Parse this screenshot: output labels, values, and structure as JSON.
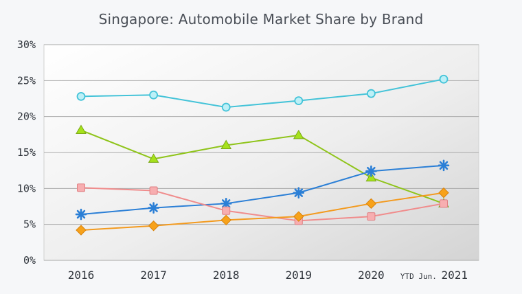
{
  "chart_data": {
    "type": "line",
    "title": "Singapore: Automobile Market Share by Brand",
    "xlabel": "",
    "ylabel": "",
    "categories": [
      "2016",
      "2017",
      "2018",
      "2019",
      "2020",
      "YTD Jun. 2021"
    ],
    "category_labels": [
      {
        "prefix": "",
        "main": "2016"
      },
      {
        "prefix": "",
        "main": "2017"
      },
      {
        "prefix": "",
        "main": "2018"
      },
      {
        "prefix": "",
        "main": "2019"
      },
      {
        "prefix": "",
        "main": "2020"
      },
      {
        "prefix": "YTD Jun.",
        "main": "2021"
      }
    ],
    "ylim": [
      0,
      30
    ],
    "yticks": [
      "0%",
      "5%",
      "10%",
      "15%",
      "20%",
      "25%",
      "30%"
    ],
    "grid": true,
    "series": [
      {
        "color": "#43c3d8",
        "marker": "circle",
        "values": [
          22.8,
          23.0,
          21.3,
          22.2,
          23.2,
          25.2
        ]
      },
      {
        "color": "#8fc41a",
        "marker": "triangle",
        "values": [
          18.1,
          14.1,
          16.0,
          17.4,
          11.5,
          7.9
        ]
      },
      {
        "color": "#2b7fd6",
        "marker": "asterisk",
        "values": [
          6.4,
          7.3,
          7.9,
          9.4,
          12.4,
          13.2
        ]
      },
      {
        "color": "#f08c8c",
        "marker": "square",
        "values": [
          10.1,
          9.7,
          6.9,
          5.5,
          6.1,
          7.9
        ]
      },
      {
        "color": "#f39a1e",
        "marker": "diamond",
        "values": [
          4.2,
          4.8,
          5.6,
          6.1,
          7.9,
          9.4
        ]
      }
    ]
  }
}
